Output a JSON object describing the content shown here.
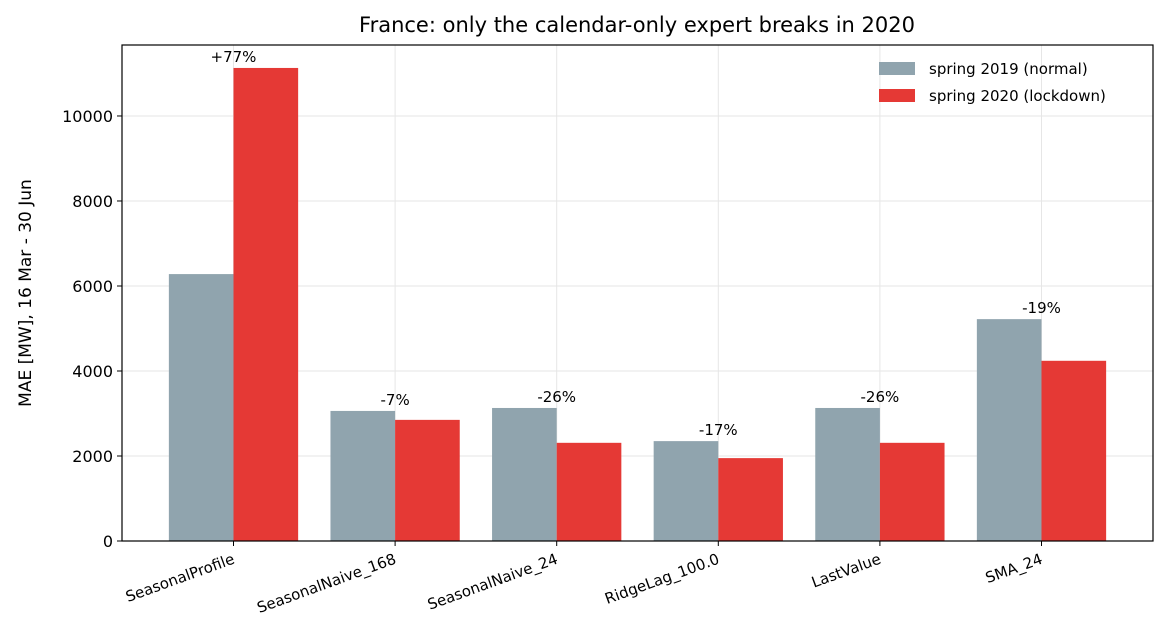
{
  "chart_data": {
    "type": "bar",
    "title": "France: only the calendar-only expert breaks in 2020",
    "y_label": "MAE [MW], 16 Mar - 30 Jun",
    "categories": [
      "SeasonalProfile",
      "SeasonalNaive_168",
      "SeasonalNaive_24",
      "RidgeLag_100.0",
      "LastValue",
      "SMA_24"
    ],
    "series": [
      {
        "name": "spring 2019 (normal)",
        "color": "#90a4ae",
        "values": [
          6280,
          3060,
          3130,
          2350,
          3130,
          5220
        ]
      },
      {
        "name": "spring 2020 (lockdown)",
        "color": "#e53935",
        "values": [
          11130,
          2850,
          2310,
          1950,
          2310,
          4240
        ]
      }
    ],
    "annotations": [
      "+77%",
      "-7%",
      "-26%",
      "-17%",
      "-26%",
      "-19%"
    ],
    "ylim": [
      0,
      11670
    ],
    "yticks": [
      0,
      2000,
      4000,
      6000,
      8000,
      10000
    ],
    "grid": true,
    "legend": "upper right"
  }
}
